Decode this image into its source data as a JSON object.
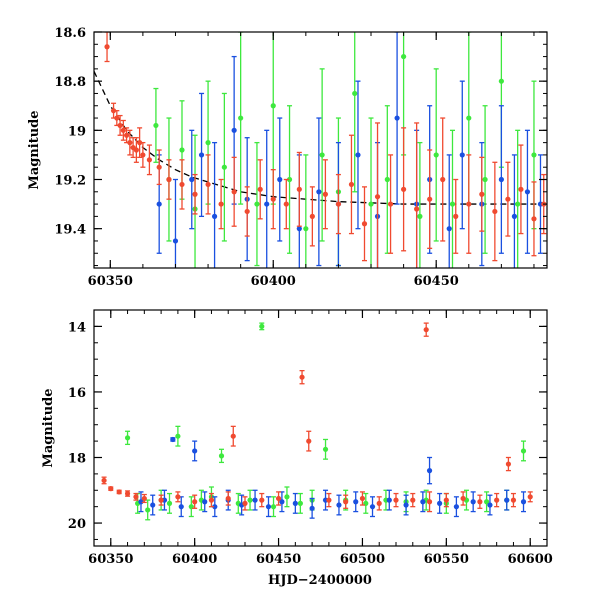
{
  "colors": {
    "green": "#3ee83e",
    "blue": "#1a50e0",
    "red": "#f04a30",
    "model": "#000000"
  },
  "chart_data": [
    {
      "panel": "top",
      "type": "scatter",
      "title": "",
      "xlabel": "",
      "ylabel": "Magnitude",
      "xlim": [
        60345,
        60484
      ],
      "ylim": [
        19.56,
        18.6
      ],
      "y_inverted": true,
      "x_ticks": [
        60350,
        60400,
        60450
      ],
      "x_tick_labels": [
        "60350",
        "60400",
        "60450"
      ],
      "y_ticks": [
        18.6,
        18.8,
        19,
        19.2,
        19.4
      ],
      "y_tick_labels": [
        "18.6",
        "18.8",
        "19",
        "19.2",
        "19.4"
      ],
      "grid": false,
      "legend": "none",
      "model_curve": {
        "style": "dashed black line",
        "x": [
          60345,
          60350,
          60355,
          60360,
          60365,
          60370,
          60375,
          60380,
          60385,
          60390,
          60400,
          60410,
          60420,
          60440,
          60460,
          60484
        ],
        "y": [
          18.76,
          18.9,
          19.0,
          19.07,
          19.12,
          19.16,
          19.19,
          19.21,
          19.23,
          19.25,
          19.27,
          19.28,
          19.29,
          19.3,
          19.3,
          19.3
        ]
      },
      "series": [
        {
          "color": "red",
          "x": [
            60349,
            60351,
            60352,
            60353,
            60354,
            60355,
            60356,
            60357,
            60358,
            60359,
            60360,
            60362,
            60365,
            60368,
            60372,
            60376,
            60380,
            60384,
            60388,
            60392,
            60396,
            60400,
            60404,
            60408,
            60412,
            60416,
            60420,
            60424,
            60428,
            60432,
            60436,
            60440,
            60444,
            60448,
            60452,
            60456,
            60460,
            60464,
            60468,
            60472,
            60476,
            60480,
            60483
          ],
          "y": [
            18.66,
            18.92,
            18.95,
            18.98,
            19.0,
            19.02,
            19.05,
            19.07,
            19.08,
            19.05,
            19.1,
            19.12,
            19.15,
            19.2,
            19.22,
            19.26,
            19.22,
            19.3,
            19.25,
            19.33,
            19.24,
            19.28,
            19.3,
            19.24,
            19.35,
            19.26,
            19.3,
            19.22,
            19.38,
            19.27,
            19.3,
            19.24,
            19.32,
            19.28,
            19.2,
            19.35,
            19.3,
            19.26,
            19.33,
            19.28,
            19.24,
            19.36,
            19.3
          ],
          "yerr": [
            0.06,
            0.03,
            0.03,
            0.04,
            0.04,
            0.03,
            0.05,
            0.04,
            0.05,
            0.06,
            0.05,
            0.06,
            0.07,
            0.08,
            0.1,
            0.08,
            0.12,
            0.1,
            0.14,
            0.1,
            0.12,
            0.12,
            0.1,
            0.15,
            0.12,
            0.14,
            0.12,
            0.2,
            0.15,
            0.3,
            0.2,
            0.25,
            0.35,
            0.2,
            0.25,
            0.15,
            0.2,
            0.15,
            0.2,
            0.15,
            0.18,
            0.15,
            0.12
          ]
        },
        {
          "color": "green",
          "x": [
            60364,
            60368,
            60372,
            60376,
            60380,
            60385,
            60390,
            60395,
            60400,
            60405,
            60410,
            60415,
            60420,
            60425,
            60430,
            60435,
            60440,
            60445,
            60450,
            60455,
            60460,
            60465,
            60470,
            60475,
            60480
          ],
          "y": [
            18.98,
            19.2,
            19.08,
            19.32,
            19.05,
            19.15,
            18.95,
            19.3,
            18.9,
            19.2,
            19.4,
            19.1,
            19.25,
            18.85,
            19.3,
            19.2,
            18.7,
            19.35,
            19.1,
            19.3,
            18.95,
            19.2,
            18.8,
            19.3,
            19.1
          ],
          "yerr": [
            0.15,
            0.25,
            0.2,
            0.3,
            0.25,
            0.3,
            0.35,
            0.25,
            0.4,
            0.3,
            0.3,
            0.35,
            0.3,
            0.4,
            0.35,
            0.3,
            0.4,
            0.3,
            0.35,
            0.3,
            0.35,
            0.3,
            0.35,
            0.3,
            0.3
          ]
        },
        {
          "color": "blue",
          "x": [
            60365,
            60370,
            60375,
            60378,
            60382,
            60388,
            60392,
            60398,
            60402,
            60408,
            60414,
            60420,
            60426,
            60432,
            60438,
            60444,
            60448,
            60454,
            60458,
            60464,
            60470,
            60474,
            60478,
            60482
          ],
          "y": [
            19.3,
            19.45,
            19.2,
            19.1,
            19.35,
            19.0,
            19.28,
            19.3,
            19.2,
            19.4,
            19.25,
            19.3,
            19.1,
            19.35,
            18.95,
            19.3,
            19.2,
            19.4,
            19.1,
            19.3,
            19.2,
            19.35,
            19.25,
            19.3
          ],
          "yerr": [
            0.2,
            0.25,
            0.2,
            0.25,
            0.3,
            0.3,
            0.25,
            0.3,
            0.25,
            0.3,
            0.3,
            0.25,
            0.3,
            0.3,
            0.35,
            0.3,
            0.3,
            0.3,
            0.3,
            0.25,
            0.3,
            0.25,
            0.25,
            0.2
          ]
        }
      ]
    },
    {
      "panel": "bottom",
      "type": "scatter",
      "title": "",
      "xlabel": "HJD−2400000",
      "ylabel": "Magnitude",
      "xlim": [
        60340,
        60610
      ],
      "ylim": [
        20.7,
        13.5
      ],
      "y_inverted": true,
      "x_ticks": [
        60350,
        60400,
        60450,
        60500,
        60550,
        60600
      ],
      "x_tick_labels": [
        "60350",
        "60400",
        "60450",
        "60500",
        "60550",
        "60600"
      ],
      "y_ticks": [
        14,
        16,
        18,
        20
      ],
      "y_tick_labels": [
        "14",
        "16",
        "18",
        "20"
      ],
      "grid": false,
      "legend": "none",
      "series": [
        {
          "color": "red",
          "x": [
            60346,
            60350,
            60355,
            60360,
            60365,
            60370,
            60380,
            60390,
            60400,
            60410,
            60420,
            60423,
            60430,
            60440,
            60450,
            60464,
            60468,
            60480,
            60490,
            60500,
            60510,
            60520,
            60530,
            60538,
            60540,
            60550,
            60560,
            60570,
            60580,
            60587,
            60590,
            60600
          ],
          "y": [
            18.7,
            18.95,
            19.05,
            19.1,
            19.2,
            19.25,
            19.3,
            19.2,
            19.35,
            19.3,
            19.25,
            17.35,
            19.4,
            19.3,
            19.25,
            15.55,
            17.5,
            19.3,
            19.35,
            19.25,
            19.4,
            19.3,
            19.3,
            14.1,
            19.35,
            19.3,
            19.25,
            19.35,
            19.3,
            18.2,
            19.3,
            19.2
          ],
          "yerr": [
            0.1,
            0.05,
            0.05,
            0.08,
            0.1,
            0.12,
            0.15,
            0.15,
            0.2,
            0.2,
            0.2,
            0.3,
            0.2,
            0.2,
            0.2,
            0.2,
            0.3,
            0.2,
            0.2,
            0.2,
            0.2,
            0.2,
            0.2,
            0.2,
            0.3,
            0.2,
            0.2,
            0.2,
            0.2,
            0.2,
            0.2,
            0.15
          ]
        },
        {
          "color": "green",
          "x": [
            60360,
            60366,
            60372,
            60380,
            60385,
            60390,
            60398,
            60404,
            60410,
            60416,
            60426,
            60433,
            60440,
            60447,
            60455,
            60463,
            60470,
            60478,
            60490,
            60502,
            60514,
            60526,
            60538,
            60550,
            60562,
            60574,
            60586,
            60596
          ],
          "y": [
            17.4,
            19.4,
            19.6,
            19.3,
            19.4,
            17.35,
            19.5,
            19.3,
            19.2,
            17.95,
            19.4,
            19.3,
            14.0,
            19.5,
            19.2,
            19.4,
            19.3,
            17.75,
            19.3,
            19.4,
            19.3,
            19.35,
            19.3,
            19.4,
            19.3,
            19.35,
            19.3,
            17.8
          ],
          "yerr": [
            0.2,
            0.3,
            0.3,
            0.3,
            0.3,
            0.3,
            0.3,
            0.3,
            0.3,
            0.2,
            0.3,
            0.3,
            0.1,
            0.3,
            0.3,
            0.3,
            0.3,
            0.3,
            0.3,
            0.3,
            0.3,
            0.3,
            0.3,
            0.3,
            0.3,
            0.3,
            0.3,
            0.3
          ]
        },
        {
          "color": "blue",
          "x": [
            60368,
            60375,
            60382,
            60387,
            60392,
            60400,
            60406,
            60412,
            60420,
            60428,
            60436,
            60444,
            60452,
            60460,
            60470,
            60478,
            60486,
            60496,
            60506,
            60516,
            60526,
            60536,
            60540,
            60546,
            60556,
            60566,
            60576,
            60586,
            60596
          ],
          "y": [
            19.35,
            19.45,
            19.3,
            17.45,
            19.5,
            17.8,
            19.35,
            19.5,
            19.3,
            19.45,
            19.3,
            19.5,
            19.35,
            19.4,
            19.55,
            19.3,
            19.45,
            19.35,
            19.5,
            19.3,
            19.45,
            19.35,
            18.4,
            19.4,
            19.5,
            19.35,
            19.45,
            19.3,
            19.35
          ],
          "yerr": [
            0.3,
            0.3,
            0.3,
            0.05,
            0.3,
            0.3,
            0.3,
            0.3,
            0.3,
            0.3,
            0.3,
            0.3,
            0.3,
            0.3,
            0.3,
            0.3,
            0.3,
            0.3,
            0.3,
            0.3,
            0.3,
            0.3,
            0.4,
            0.3,
            0.3,
            0.3,
            0.3,
            0.3,
            0.3
          ]
        }
      ]
    }
  ]
}
